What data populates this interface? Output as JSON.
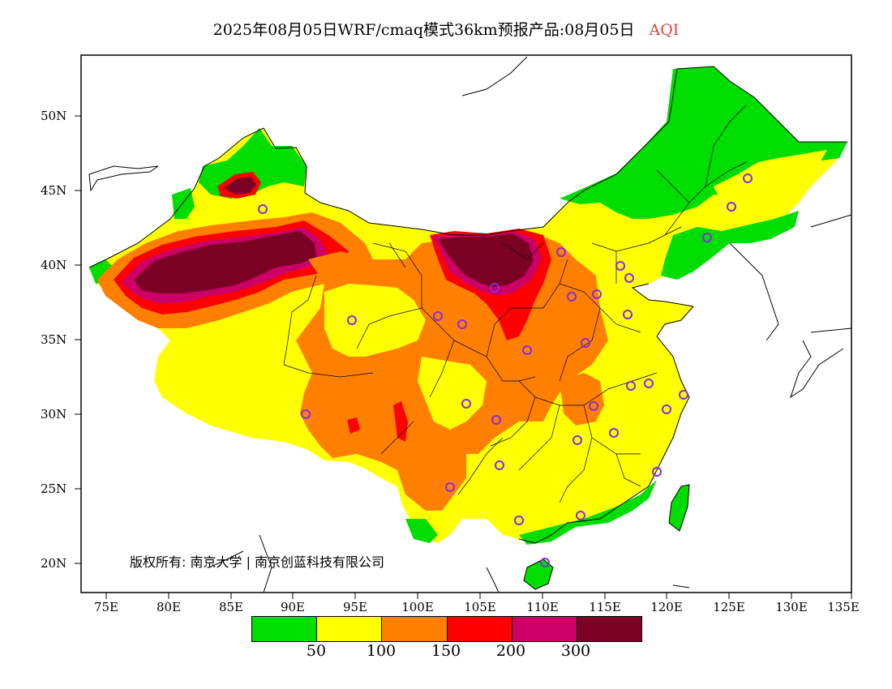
{
  "title": {
    "main": "2025年08月05日WRF/cmaq模式36km预报产品:08月05日",
    "variable": "AQI"
  },
  "copyright": "版权所有: 南京大学 | 南京创蓝科技有限公司",
  "axes": {
    "y_ticks": [
      "50N",
      "45N",
      "40N",
      "35N",
      "30N",
      "25N",
      "20N"
    ],
    "x_ticks": [
      "75E",
      "80E",
      "85E",
      "90E",
      "95E",
      "100E",
      "105E",
      "110E",
      "115E",
      "120E",
      "125E",
      "130E",
      "135E"
    ]
  },
  "legend": {
    "colors": [
      "#00dd00",
      "#ffff00",
      "#ff8000",
      "#ff0000",
      "#cc0066",
      "#7a0024"
    ],
    "labels": [
      "50",
      "100",
      "150",
      "200",
      "300"
    ]
  },
  "colors": {
    "good": "#00dd00",
    "moderate": "#ffff00",
    "sensitive": "#ff8000",
    "unhealthy": "#ff0000",
    "very_unhealthy": "#cc0066",
    "hazardous": "#7a0024",
    "station_marker": "#8a2be2"
  }
}
